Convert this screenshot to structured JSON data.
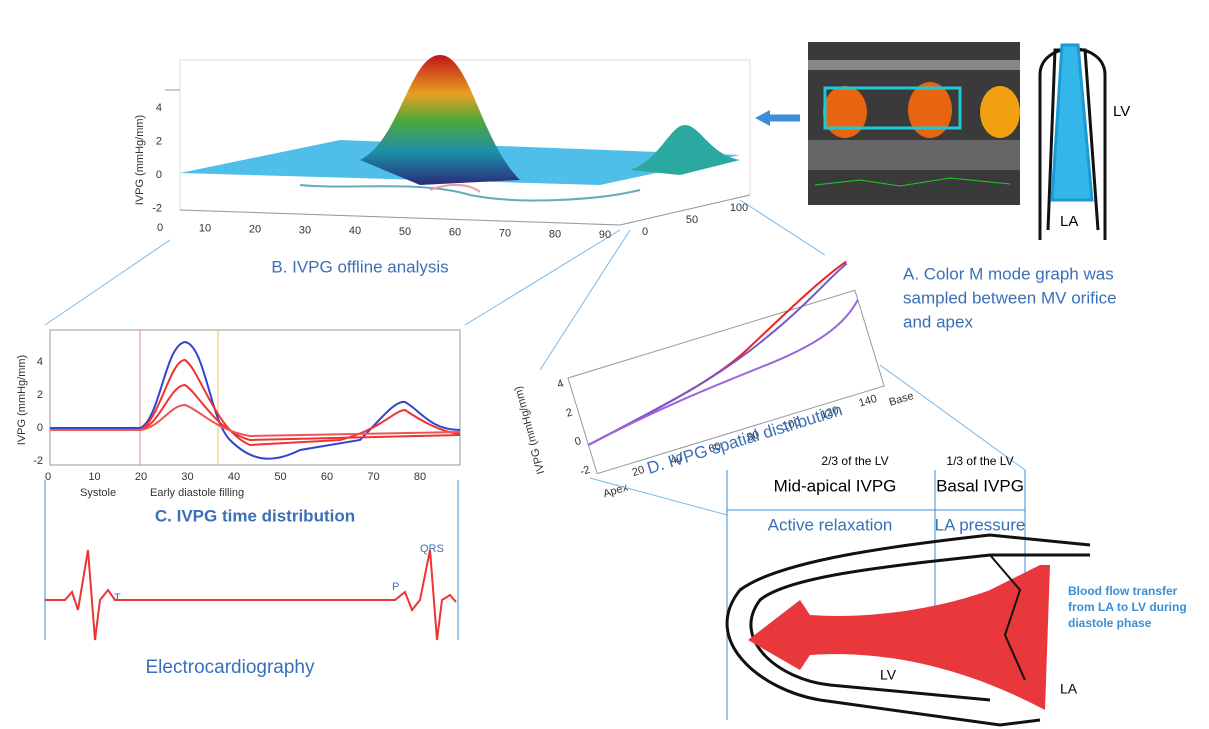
{
  "panel_b": {
    "y_label": "IVPG (mmHg/mm)",
    "y_ticks": [
      "4",
      "2",
      "0",
      "-2"
    ],
    "x_ticks": [
      "0",
      "10",
      "20",
      "30",
      "40",
      "50",
      "60",
      "70",
      "80",
      "90"
    ],
    "depth_ticks": [
      "0",
      "50",
      "100"
    ],
    "caption": "B. IVPG offline analysis"
  },
  "panel_a": {
    "caption_lines": [
      "A. Color M mode graph was",
      "sampled between MV orifice",
      "and apex"
    ],
    "lv": "LV",
    "la": "LA"
  },
  "panel_c": {
    "y_label": "IVPG (mmHg/mm)",
    "y_ticks": [
      "4",
      "2",
      "0",
      "-2"
    ],
    "x_ticks": [
      "0",
      "10",
      "20",
      "30",
      "40",
      "50",
      "60",
      "70",
      "80"
    ],
    "systole": "Systole",
    "early": "Early diastole filling",
    "caption": "C. IVPG time distribution"
  },
  "ecg": {
    "t": "T",
    "p": "P",
    "qrs": "QRS",
    "caption": "Electrocardiography"
  },
  "panel_d": {
    "y_label": "IVPG (mmHg/mm)",
    "y_ticks": [
      "4",
      "2",
      "0",
      "-2"
    ],
    "x_ticks": [
      "20",
      "40",
      "60",
      "80",
      "100",
      "120",
      "140"
    ],
    "apex": "Apex",
    "base": "Base",
    "caption": "D. IVPG spatial distribution"
  },
  "bottom": {
    "two_thirds": "2/3 of the LV",
    "one_third": "1/3 of the LV",
    "mid_apical": "Mid-apical IVPG",
    "basal": "Basal IVPG",
    "active": "Active relaxation",
    "la_pressure": "LA pressure",
    "flow_lines": [
      "Blood flow transfer",
      "from LA to LV during",
      "diastole phase"
    ],
    "lv": "LV",
    "la": "LA"
  }
}
